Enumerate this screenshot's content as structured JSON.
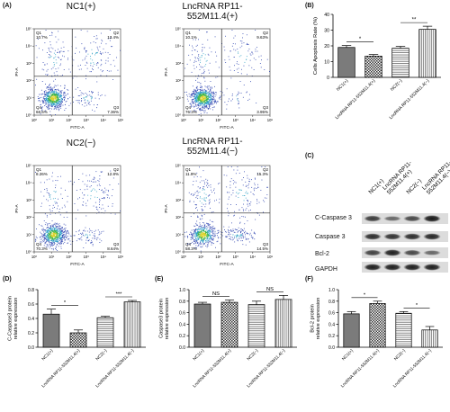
{
  "panels": {
    "a": "(A)",
    "b": "(B)",
    "c": "(C)",
    "d": "(D)",
    "e": "(E)",
    "f": "(F)"
  },
  "flow": [
    {
      "title": "NC1(+)",
      "q1": "Q1",
      "q2": "Q2",
      "q3": "Q3",
      "q4": "Q4",
      "q1v": "10.7%",
      "q2v": "13.4%",
      "q3v": "7.36%",
      "q4v": "68.6%",
      "xlabel": "FITC-A",
      "ylabel": "PI-A"
    },
    {
      "title": "LncRNA RP11-\n552M11.4(+)",
      "q1": "Q1",
      "q2": "Q2",
      "q3": "Q3",
      "q4": "Q4",
      "q1v": "10.1%",
      "q2v": "9.63%",
      "q3v": "3.95%",
      "q4v": "76.3%",
      "xlabel": "FITC-A",
      "ylabel": "PI-A"
    },
    {
      "title": "NC2(−)",
      "q1": "Q1",
      "q2": "Q2",
      "q3": "Q3",
      "q4": "Q4",
      "q1v": "8.26%",
      "q2v": "12.8%",
      "q3v": "8.64%",
      "q4v": "70.3%",
      "xlabel": "FITC-A",
      "ylabel": "PI-A"
    },
    {
      "title": "LncRNA RP11-\n552M11.4(−)",
      "q1": "Q1",
      "q2": "Q2",
      "q3": "Q3",
      "q4": "Q4",
      "q1v": "11.9%",
      "q2v": "15.3%",
      "q3v": "14.5%",
      "q4v": "58.3%",
      "xlabel": "FITC-A",
      "ylabel": "PI-A"
    }
  ],
  "flow_ticks": [
    "10⁰",
    "10¹",
    "10²",
    "10³",
    "10⁴",
    "10⁵"
  ],
  "western": {
    "lanes": [
      "NC1(+)",
      "LncRNA RP11-\n552M11.4(+)",
      "NC2(−)",
      "LncRNA RP11-\n552M11.4(−)"
    ],
    "rows": [
      "C-Caspase 3",
      "Caspase 3",
      "Bcl-2",
      "GAPDH"
    ]
  },
  "chart_data": [
    {
      "panel": "B",
      "type": "bar",
      "categories": [
        "NC1(+)",
        "LncRNA RP11-552M11.4(+)",
        "NC2(−)",
        "LncRNA RP11-552M11.4(−)"
      ],
      "values": [
        19,
        13.5,
        18.5,
        30.5
      ],
      "errors": [
        1.2,
        1.0,
        1.2,
        2.0
      ],
      "ylabel": "Cells Apoptosis Rate (%)",
      "ylim": [
        0,
        40
      ],
      "yticks": [
        "0",
        "10",
        "20",
        "30",
        "40"
      ],
      "significance": [
        {
          "pair": [
            0,
            1
          ],
          "label": "*"
        },
        {
          "pair": [
            2,
            3
          ],
          "label": "**"
        }
      ]
    },
    {
      "panel": "D",
      "type": "bar",
      "categories": [
        "NC1(+)",
        "LncRNA RP11-552M11.4(+)",
        "NC2(−)",
        "LncRNA RP11-552M11.4(−)"
      ],
      "values": [
        0.46,
        0.2,
        0.41,
        0.63
      ],
      "errors": [
        0.07,
        0.04,
        0.02,
        0.02
      ],
      "ylabel": "C-Caspase3 protein\nrelative expression",
      "ylim": [
        0,
        0.8
      ],
      "yticks": [
        "0.0",
        "0.2",
        "0.4",
        "0.6",
        "0.8"
      ],
      "significance": [
        {
          "pair": [
            0,
            1
          ],
          "label": "*"
        },
        {
          "pair": [
            2,
            3
          ],
          "label": "***"
        }
      ]
    },
    {
      "panel": "E",
      "type": "bar",
      "categories": [
        "NC1(+)",
        "LncRNA RP11-552M11.4(+)",
        "NC2(−)",
        "LncRNA RP11-552M11.4(−)"
      ],
      "values": [
        0.75,
        0.78,
        0.74,
        0.83
      ],
      "errors": [
        0.03,
        0.04,
        0.06,
        0.07
      ],
      "ylabel": "Caspase3 protein\nrelative expression",
      "ylim": [
        0,
        1.0
      ],
      "yticks": [
        "0.0",
        "0.2",
        "0.4",
        "0.6",
        "0.8",
        "1.0"
      ],
      "significance": [
        {
          "pair": [
            0,
            1
          ],
          "label": "NS"
        },
        {
          "pair": [
            2,
            3
          ],
          "label": "NS"
        }
      ]
    },
    {
      "panel": "F",
      "type": "bar",
      "categories": [
        "NC1(+)",
        "LncRNA RP11-552M11.4(+)",
        "NC2(−)",
        "LncRNA RP11-552M11.4(−)"
      ],
      "values": [
        0.58,
        0.76,
        0.59,
        0.3
      ],
      "errors": [
        0.04,
        0.04,
        0.03,
        0.06
      ],
      "ylabel": "Bcl-2 protein\nrelative expression",
      "ylim": [
        0,
        1.0
      ],
      "yticks": [
        "0.0",
        "0.2",
        "0.4",
        "0.6",
        "0.8",
        "1.0"
      ],
      "significance": [
        {
          "pair": [
            0,
            1
          ],
          "label": "*"
        },
        {
          "pair": [
            2,
            3
          ],
          "label": "*"
        }
      ]
    }
  ]
}
